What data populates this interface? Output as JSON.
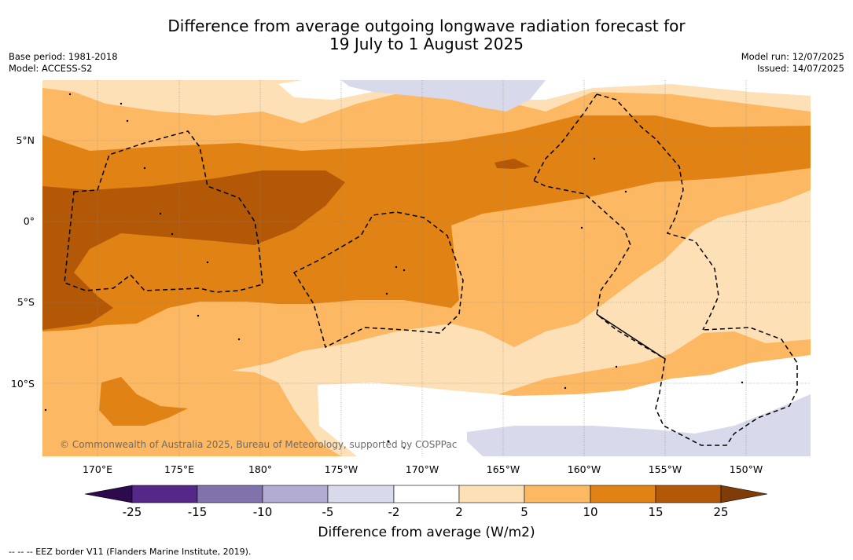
{
  "title": {
    "line1": "Difference from average outgoing longwave radiation forecast for",
    "line2": "19 July to 1 August 2025"
  },
  "meta": {
    "base_period": "Base period: 1981-2018",
    "model": "Model: ACCESS-S2",
    "model_run": "Model run: 12/07/2025",
    "issued": "Issued: 14/07/2025"
  },
  "map": {
    "lat_labels": [
      "5°N",
      "0°",
      "5°S",
      "10°S"
    ],
    "lon_labels": [
      "170°E",
      "175°E",
      "180°",
      "175°W",
      "170°W",
      "165°W",
      "160°W",
      "155°W",
      "150°W"
    ],
    "copyright": "© Commonwealth of Australia 2025, Bureau of Meteorology, supported by COSPPac",
    "legend_note": "--  --  -- EEZ border V11 (Flanders Marine Institute, 2019)."
  },
  "colorbar": {
    "label": "Difference from average (W/m2)",
    "ticks": [
      "-25",
      "-15",
      "-10",
      "-5",
      "-2",
      "2",
      "5",
      "10",
      "15",
      "25"
    ],
    "colors": {
      "lt_-25": "#2d0a4e",
      "-25_-15": "#542788",
      "-15_-10": "#8073ac",
      "-10_-5": "#b2abd2",
      "-5_-2": "#d8daeb",
      "-2_2": "#ffffff",
      "2_5": "#fee0b6",
      "5_10": "#fdb863",
      "10_15": "#e08214",
      "15_25": "#b35806",
      "gt_25": "#7f3b08"
    }
  }
}
